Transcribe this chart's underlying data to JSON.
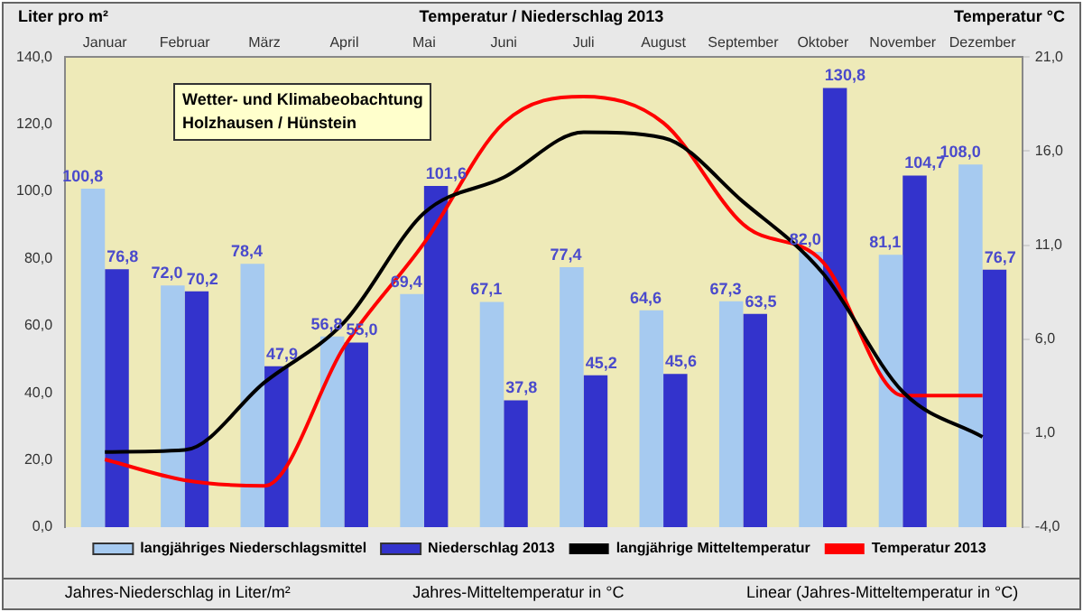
{
  "chart_data": {
    "type": "bar",
    "title": "Temperatur / Niederschlag 2013",
    "ylabel": "Liter pro m²",
    "y2label": "Temperatur °C",
    "categories": [
      "Januar",
      "Februar",
      "März",
      "April",
      "Mai",
      "Juni",
      "Juli",
      "August",
      "September",
      "Oktober",
      "November",
      "Dezember"
    ],
    "series": [
      {
        "name": "langjähriges Niederschlagsmittel",
        "color": "#a6caf0",
        "values": [
          100.8,
          72.0,
          78.4,
          56.8,
          69.4,
          67.1,
          77.4,
          64.6,
          67.3,
          82.0,
          81.1,
          108.0
        ]
      },
      {
        "name": "Niederschlag 2013",
        "color": "#3333cc",
        "values": [
          76.8,
          70.2,
          47.9,
          55.0,
          101.6,
          37.8,
          45.2,
          45.6,
          63.5,
          130.8,
          104.7,
          76.7
        ]
      },
      {
        "name": "langjährige Mitteltemperatur",
        "type": "line",
        "axis": "y2",
        "color": "#000000",
        "values": [
          0.0,
          0.1,
          3.7,
          6.9,
          12.7,
          14.6,
          17.0,
          16.7,
          13.3,
          9.5,
          3.2,
          0.8
        ]
      },
      {
        "name": "Temperatur 2013",
        "type": "line",
        "axis": "y2",
        "color": "#ff0000",
        "values": [
          -0.4,
          -1.5,
          -1.8,
          5.6,
          11.1,
          17.5,
          18.9,
          17.5,
          12.1,
          10.1,
          3.0,
          3.0
        ]
      }
    ],
    "ylim": [
      0,
      140
    ],
    "yticks": [
      {
        "value": 0,
        "label": "0,0"
      },
      {
        "value": 20,
        "label": "20,0"
      },
      {
        "value": 40,
        "label": "40,0"
      },
      {
        "value": 60,
        "label": "60,0"
      },
      {
        "value": 80,
        "label": "80,0"
      },
      {
        "value": 100,
        "label": "100,0"
      },
      {
        "value": 120,
        "label": "120,0"
      },
      {
        "value": 140,
        "label": "140,0"
      }
    ],
    "y2lim": [
      -4,
      21
    ],
    "y2ticks": [
      {
        "value": -4,
        "label": "-4,0"
      },
      {
        "value": 1,
        "label": "1,0"
      },
      {
        "value": 6,
        "label": "6,0"
      },
      {
        "value": 11,
        "label": "11,0"
      },
      {
        "value": 16,
        "label": "16,0"
      },
      {
        "value": 21,
        "label": "21,0"
      }
    ],
    "value_labels": [
      [
        "100,8",
        "72,0",
        "78,4",
        "56,8",
        "69,4",
        "67,1",
        "77,4",
        "64,6",
        "67,3",
        "82,0",
        "81,1",
        "108,0"
      ],
      [
        "76,8",
        "70,2",
        "47,9",
        "55,0",
        "101,6",
        "37,8",
        "45,2",
        "45,6",
        "63,5",
        "130,8",
        "104,7",
        "76,7"
      ],
      null,
      null
    ],
    "grid": false,
    "legend": "bottom",
    "marker": "none",
    "line_style": "solid",
    "annotations": [
      "Wetter- und Klimabeobachtung",
      "Holzhausen / Hünstein",
      "Jahres-Niederschlag in Liter/m²",
      "Jahres-Mitteltemperatur in °C",
      "Linear (Jahres-Mitteltemperatur in °C)"
    ]
  }
}
